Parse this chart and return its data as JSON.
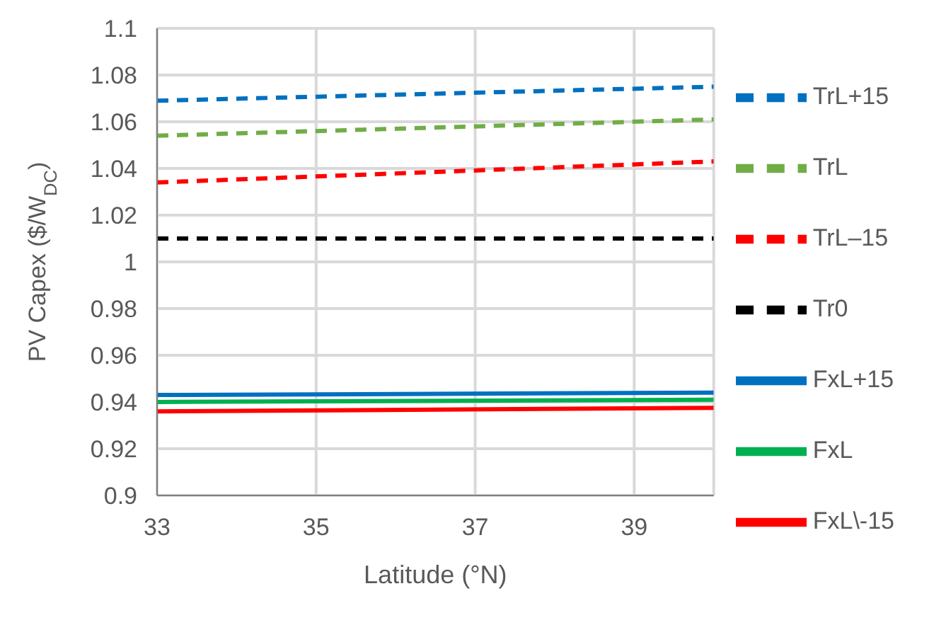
{
  "chart_data": {
    "type": "line",
    "xlabel": "Latitude (°N)",
    "ylabel": "PV Capex ($/W$_{DC}$)",
    "x": [
      33,
      40
    ],
    "xlim": [
      33,
      40
    ],
    "xticks": [
      33,
      35,
      37,
      39
    ],
    "ylim": [
      0.9,
      1.1
    ],
    "yticks": [
      0.9,
      0.92,
      0.94,
      0.96,
      0.98,
      1,
      1.02,
      1.04,
      1.06,
      1.08,
      1.1
    ],
    "grid": true,
    "legend": "right",
    "marker": "none",
    "series": [
      {
        "name": "TrL+15",
        "color": "#0070c0",
        "line_style": "dashed",
        "values": [
          1.069,
          1.075
        ]
      },
      {
        "name": "TrL",
        "color": "#70ad47",
        "line_style": "dashed",
        "values": [
          1.054,
          1.061
        ]
      },
      {
        "name": "TrL–15",
        "color": "#ff0000",
        "line_style": "dashed",
        "values": [
          1.034,
          1.043
        ]
      },
      {
        "name": "Tr0",
        "color": "#000000",
        "line_style": "dashed",
        "values": [
          1.01,
          1.01
        ]
      },
      {
        "name": "FxL+15",
        "color": "#0070c0",
        "line_style": "solid",
        "values": [
          0.943,
          0.944
        ]
      },
      {
        "name": "FxL",
        "color": "#00b050",
        "line_style": "solid",
        "values": [
          0.94,
          0.941
        ]
      },
      {
        "name": "FxL\\-15",
        "color": "#ff0000",
        "line_style": "solid",
        "values": [
          0.936,
          0.9375
        ]
      }
    ]
  }
}
